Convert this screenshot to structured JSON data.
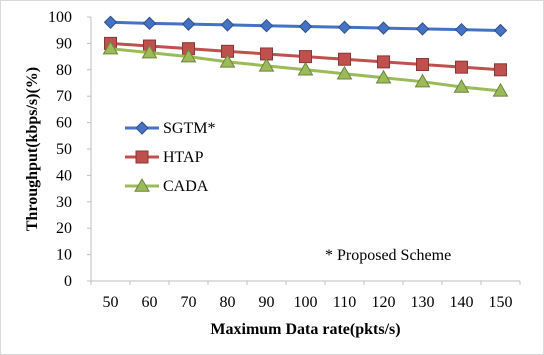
{
  "chart_data": {
    "type": "line",
    "x": [
      50,
      60,
      70,
      80,
      90,
      100,
      110,
      120,
      130,
      140,
      150
    ],
    "xlabel": "Maximum Data rate(pkts/s)",
    "ylabel": "Throughput(kbps/s)(%)",
    "ylim": [
      0,
      100
    ],
    "yticks": [
      0,
      10,
      20,
      30,
      40,
      50,
      60,
      70,
      80,
      90,
      100
    ],
    "grid": false,
    "legend_position": "left",
    "annotation": "* Proposed Scheme",
    "series": [
      {
        "name": "SGTM*",
        "color": "#4472c4",
        "marker": "diamond",
        "values": [
          98,
          97.6,
          97.3,
          97,
          96.7,
          96.4,
          96.1,
          95.8,
          95.5,
          95.2,
          94.9
        ]
      },
      {
        "name": "HTAP",
        "color": "#c0504d",
        "marker": "square",
        "values": [
          90,
          89,
          88,
          87,
          86,
          85,
          84,
          83,
          82,
          81,
          80
        ]
      },
      {
        "name": "CADA",
        "color": "#9bbb59",
        "marker": "triangle",
        "values": [
          88,
          86.5,
          85,
          83,
          81.5,
          80,
          78.5,
          77,
          75.5,
          73.5,
          72
        ]
      }
    ]
  }
}
